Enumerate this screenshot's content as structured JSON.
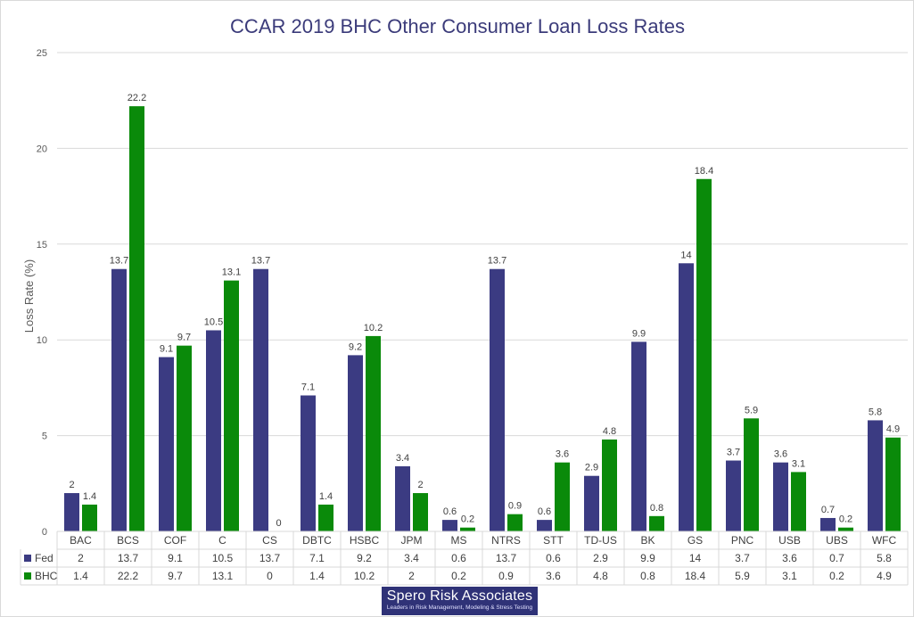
{
  "chart_data": {
    "type": "bar",
    "title": "CCAR 2019 BHC Other Consumer Loan Loss Rates",
    "ylabel": "Loss Rate (%)",
    "xlabel": "",
    "ylim": [
      0,
      25
    ],
    "yticks": [
      0,
      5,
      10,
      15,
      20,
      25
    ],
    "grid": true,
    "legend": "data-table",
    "categories": [
      "BAC",
      "BCS",
      "COF",
      "C",
      "CS",
      "DBTC",
      "HSBC",
      "JPM",
      "MS",
      "NTRS",
      "STT",
      "TD-US",
      "BK",
      "GS",
      "PNC",
      "USB",
      "UBS",
      "WFC"
    ],
    "series": [
      {
        "name": "Fed",
        "color": "#3b3b82",
        "values": [
          2,
          13.7,
          9.1,
          10.5,
          13.7,
          7.1,
          9.2,
          3.4,
          0.6,
          13.7,
          0.6,
          2.9,
          9.9,
          14,
          3.7,
          3.6,
          0.7,
          5.8
        ]
      },
      {
        "name": "BHC",
        "color": "#0a8a0a",
        "values": [
          1.4,
          22.2,
          9.7,
          13.1,
          0,
          1.4,
          10.2,
          2,
          0.2,
          0.9,
          3.6,
          4.8,
          0.8,
          18.4,
          5.9,
          3.1,
          0.2,
          4.9
        ]
      }
    ]
  },
  "logo": {
    "name": "Spero Risk Associates",
    "tagline": "Leaders in Risk Management, Modeling & Stress Testing"
  }
}
